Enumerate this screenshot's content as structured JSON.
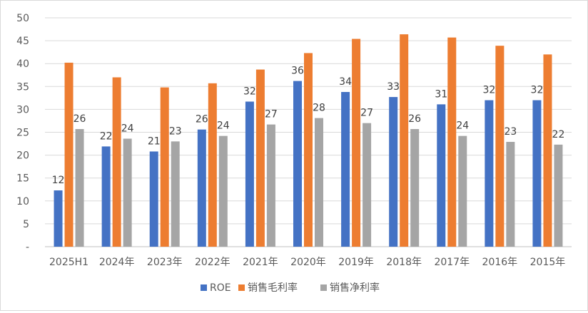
{
  "chart_data": {
    "type": "bar",
    "categories": [
      "2025H1",
      "2024年",
      "2023年",
      "2022年",
      "2021年",
      "2020年",
      "2019年",
      "2018年",
      "2017年",
      "2016年",
      "2015年"
    ],
    "series": [
      {
        "name": "ROE",
        "color": "#4472c4",
        "values": [
          12.3,
          21.9,
          20.8,
          25.6,
          31.7,
          36.2,
          33.8,
          32.7,
          31.1,
          32.0,
          32.0
        ],
        "labels": [
          "12",
          "22",
          "21",
          "26",
          "32",
          "36",
          "34",
          "33",
          "31",
          "32",
          "32"
        ]
      },
      {
        "name": "销售毛利率",
        "color": "#ed7d31",
        "values": [
          40.2,
          37.0,
          34.8,
          35.7,
          38.7,
          42.3,
          45.4,
          46.4,
          45.7,
          43.9,
          42.0
        ],
        "labels": []
      },
      {
        "name": "销售净利率",
        "color": "#a5a5a5",
        "values": [
          25.7,
          23.6,
          23.0,
          24.2,
          26.7,
          28.1,
          27.0,
          25.7,
          24.2,
          22.9,
          22.3
        ],
        "labels": [
          "26",
          "24",
          "23",
          "24",
          "27",
          "28",
          "27",
          "26",
          "24",
          "23",
          "22"
        ]
      }
    ],
    "yticks": [
      "-",
      "5",
      "10",
      "15",
      "20",
      "25",
      "30",
      "35",
      "40",
      "45",
      "50"
    ],
    "ylim": [
      0,
      50
    ],
    "grid": true,
    "legend_position": "bottom"
  }
}
